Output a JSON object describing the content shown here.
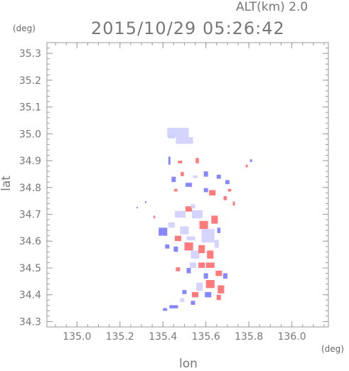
{
  "header": {
    "alt_label": "ALT(km)  2.0",
    "timestamp": "2015/10/29  05:26:42"
  },
  "axes": {
    "y_unit": "(deg)",
    "x_unit": "(deg)",
    "xlabel": "lon",
    "ylabel": "lat"
  },
  "chart_data": {
    "type": "heatmap",
    "title": "2015/10/29  05:26:42",
    "subtitle": "ALT(km)  2.0",
    "xlabel": "lon",
    "ylabel": "lat",
    "xlim": [
      134.86,
      136.17
    ],
    "ylim": [
      34.28,
      35.34
    ],
    "x_ticks": [
      135.0,
      135.2,
      135.4,
      135.6,
      135.8,
      136.0
    ],
    "x_tick_labels": [
      "135.0",
      "135.2",
      "135.4",
      "135.6",
      "135.8",
      "136.0"
    ],
    "y_ticks": [
      34.3,
      34.4,
      34.5,
      34.6,
      34.7,
      34.8,
      34.9,
      35.0,
      35.1,
      35.2,
      35.3
    ],
    "y_tick_labels": [
      "34.3",
      "34.4",
      "34.5",
      "34.6",
      "34.7",
      "34.8",
      "34.9",
      "35.0",
      "35.1",
      "35.2",
      "35.3"
    ],
    "minor_tick_step_x": 0.05,
    "minor_tick_step_y": 0.02,
    "grid": false,
    "colors": {
      "positive": "#ff6b6b",
      "negative": "#7a7aff",
      "weak": "#ccccff"
    },
    "cells": [
      {
        "lon": 135.47,
        "lat": 35.005,
        "w": 0.1,
        "h": 0.035,
        "color": "weak"
      },
      {
        "lon": 135.5,
        "lat": 34.975,
        "w": 0.08,
        "h": 0.025,
        "color": "weak"
      },
      {
        "lon": 135.44,
        "lat": 34.99,
        "w": 0.03,
        "h": 0.015,
        "color": "weak"
      },
      {
        "lon": 135.43,
        "lat": 34.9,
        "w": 0.01,
        "h": 0.03,
        "color": "negative"
      },
      {
        "lon": 135.48,
        "lat": 34.895,
        "w": 0.02,
        "h": 0.01,
        "color": "positive"
      },
      {
        "lon": 135.45,
        "lat": 34.83,
        "w": 0.02,
        "h": 0.02,
        "color": "negative"
      },
      {
        "lon": 135.49,
        "lat": 34.85,
        "w": 0.015,
        "h": 0.015,
        "color": "positive"
      },
      {
        "lon": 135.52,
        "lat": 34.81,
        "w": 0.03,
        "h": 0.015,
        "color": "negative"
      },
      {
        "lon": 135.56,
        "lat": 34.9,
        "w": 0.015,
        "h": 0.02,
        "color": "positive"
      },
      {
        "lon": 135.6,
        "lat": 34.85,
        "w": 0.02,
        "h": 0.02,
        "color": "negative"
      },
      {
        "lon": 135.63,
        "lat": 34.78,
        "w": 0.03,
        "h": 0.02,
        "color": "positive"
      },
      {
        "lon": 135.6,
        "lat": 34.79,
        "w": 0.02,
        "h": 0.015,
        "color": "negative"
      },
      {
        "lon": 135.66,
        "lat": 34.84,
        "w": 0.02,
        "h": 0.015,
        "color": "negative"
      },
      {
        "lon": 135.7,
        "lat": 34.82,
        "w": 0.02,
        "h": 0.015,
        "color": "negative"
      },
      {
        "lon": 135.69,
        "lat": 34.76,
        "w": 0.015,
        "h": 0.015,
        "color": "positive"
      },
      {
        "lon": 135.73,
        "lat": 34.74,
        "w": 0.01,
        "h": 0.015,
        "color": "positive"
      },
      {
        "lon": 135.71,
        "lat": 34.79,
        "w": 0.015,
        "h": 0.01,
        "color": "positive"
      },
      {
        "lon": 135.79,
        "lat": 34.88,
        "w": 0.01,
        "h": 0.01,
        "color": "positive"
      },
      {
        "lon": 135.81,
        "lat": 34.9,
        "w": 0.01,
        "h": 0.01,
        "color": "negative"
      },
      {
        "lon": 135.46,
        "lat": 34.79,
        "w": 0.015,
        "h": 0.01,
        "color": "positive"
      },
      {
        "lon": 135.55,
        "lat": 34.84,
        "w": 0.02,
        "h": 0.01,
        "color": "weak"
      },
      {
        "lon": 135.32,
        "lat": 34.745,
        "w": 0.006,
        "h": 0.008,
        "color": "negative"
      },
      {
        "lon": 135.28,
        "lat": 34.725,
        "w": 0.006,
        "h": 0.006,
        "color": "negative"
      },
      {
        "lon": 135.36,
        "lat": 34.69,
        "w": 0.008,
        "h": 0.01,
        "color": "positive"
      },
      {
        "lon": 135.4,
        "lat": 34.635,
        "w": 0.04,
        "h": 0.03,
        "color": "negative"
      },
      {
        "lon": 135.44,
        "lat": 34.66,
        "w": 0.03,
        "h": 0.02,
        "color": "weak"
      },
      {
        "lon": 135.48,
        "lat": 34.7,
        "w": 0.05,
        "h": 0.025,
        "color": "weak"
      },
      {
        "lon": 135.52,
        "lat": 34.72,
        "w": 0.03,
        "h": 0.02,
        "color": "positive"
      },
      {
        "lon": 135.56,
        "lat": 34.7,
        "w": 0.05,
        "h": 0.03,
        "color": "weak"
      },
      {
        "lon": 135.59,
        "lat": 34.66,
        "w": 0.04,
        "h": 0.03,
        "color": "positive"
      },
      {
        "lon": 135.61,
        "lat": 34.62,
        "w": 0.06,
        "h": 0.05,
        "color": "weak"
      },
      {
        "lon": 135.64,
        "lat": 34.68,
        "w": 0.03,
        "h": 0.03,
        "color": "positive"
      },
      {
        "lon": 135.5,
        "lat": 34.64,
        "w": 0.04,
        "h": 0.03,
        "color": "weak"
      },
      {
        "lon": 135.47,
        "lat": 34.61,
        "w": 0.03,
        "h": 0.02,
        "color": "positive"
      },
      {
        "lon": 135.52,
        "lat": 34.58,
        "w": 0.04,
        "h": 0.03,
        "color": "positive"
      },
      {
        "lon": 135.55,
        "lat": 34.55,
        "w": 0.04,
        "h": 0.03,
        "color": "weak"
      },
      {
        "lon": 135.58,
        "lat": 34.57,
        "w": 0.03,
        "h": 0.03,
        "color": "positive"
      },
      {
        "lon": 135.62,
        "lat": 34.55,
        "w": 0.03,
        "h": 0.03,
        "color": "positive"
      },
      {
        "lon": 135.65,
        "lat": 34.59,
        "w": 0.02,
        "h": 0.03,
        "color": "weak"
      },
      {
        "lon": 135.46,
        "lat": 34.57,
        "w": 0.02,
        "h": 0.02,
        "color": "negative"
      },
      {
        "lon": 135.42,
        "lat": 34.58,
        "w": 0.02,
        "h": 0.015,
        "color": "negative"
      },
      {
        "lon": 135.53,
        "lat": 34.61,
        "w": 0.04,
        "h": 0.015,
        "color": "weak"
      },
      {
        "lon": 135.54,
        "lat": 34.73,
        "w": 0.02,
        "h": 0.015,
        "color": "weak"
      },
      {
        "lon": 135.66,
        "lat": 34.64,
        "w": 0.015,
        "h": 0.02,
        "color": "negative"
      },
      {
        "lon": 135.54,
        "lat": 34.51,
        "w": 0.03,
        "h": 0.02,
        "color": "weak"
      },
      {
        "lon": 135.58,
        "lat": 34.51,
        "w": 0.03,
        "h": 0.02,
        "color": "positive"
      },
      {
        "lon": 135.62,
        "lat": 34.51,
        "w": 0.04,
        "h": 0.02,
        "color": "positive"
      },
      {
        "lon": 135.66,
        "lat": 34.48,
        "w": 0.03,
        "h": 0.02,
        "color": "positive"
      },
      {
        "lon": 135.52,
        "lat": 34.49,
        "w": 0.02,
        "h": 0.02,
        "color": "negative"
      },
      {
        "lon": 135.47,
        "lat": 34.495,
        "w": 0.02,
        "h": 0.015,
        "color": "positive"
      },
      {
        "lon": 135.69,
        "lat": 34.47,
        "w": 0.02,
        "h": 0.02,
        "color": "negative"
      },
      {
        "lon": 135.6,
        "lat": 34.47,
        "w": 0.02,
        "h": 0.02,
        "color": "negative"
      },
      {
        "lon": 135.62,
        "lat": 34.44,
        "w": 0.04,
        "h": 0.03,
        "color": "positive"
      },
      {
        "lon": 135.67,
        "lat": 34.42,
        "w": 0.03,
        "h": 0.03,
        "color": "positive"
      },
      {
        "lon": 135.57,
        "lat": 34.43,
        "w": 0.03,
        "h": 0.03,
        "color": "weak"
      },
      {
        "lon": 135.55,
        "lat": 34.4,
        "w": 0.03,
        "h": 0.02,
        "color": "positive"
      },
      {
        "lon": 135.61,
        "lat": 34.4,
        "w": 0.03,
        "h": 0.02,
        "color": "negative"
      },
      {
        "lon": 135.66,
        "lat": 34.39,
        "w": 0.02,
        "h": 0.02,
        "color": "positive"
      },
      {
        "lon": 135.5,
        "lat": 34.41,
        "w": 0.02,
        "h": 0.015,
        "color": "negative"
      },
      {
        "lon": 135.49,
        "lat": 34.38,
        "w": 0.02,
        "h": 0.015,
        "color": "weak"
      },
      {
        "lon": 135.54,
        "lat": 34.37,
        "w": 0.02,
        "h": 0.015,
        "color": "negative"
      },
      {
        "lon": 135.45,
        "lat": 34.355,
        "w": 0.04,
        "h": 0.012,
        "color": "negative"
      },
      {
        "lon": 135.41,
        "lat": 34.345,
        "w": 0.02,
        "h": 0.01,
        "color": "negative"
      }
    ]
  }
}
